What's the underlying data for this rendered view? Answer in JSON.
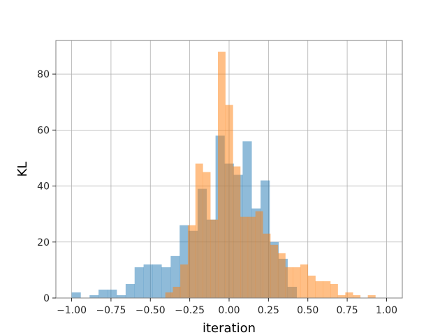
{
  "chart_data": {
    "type": "bar",
    "subtype": "overlaid-histogram",
    "title": "",
    "xlabel": "iteration",
    "ylabel": "KL",
    "xlim": [
      -1.1,
      1.1
    ],
    "ylim": [
      0,
      92
    ],
    "xticks": [
      -1.0,
      -0.75,
      -0.5,
      -0.25,
      0.0,
      0.25,
      0.5,
      0.75,
      1.0
    ],
    "xtick_labels": [
      "−1.00",
      "−0.75",
      "−0.50",
      "−0.25",
      "0.00",
      "0.25",
      "0.50",
      "0.75",
      "1.00"
    ],
    "yticks": [
      0,
      20,
      40,
      60,
      80
    ],
    "ytick_labels": [
      "0",
      "20",
      "40",
      "60",
      "80"
    ],
    "grid": true,
    "legend": "none",
    "series": [
      {
        "color": "#1f77b4",
        "alpha": 0.5,
        "bins": [
          {
            "x0": -1.0,
            "x1": -0.943,
            "count": 2
          },
          {
            "x0": -0.943,
            "x1": -0.886,
            "count": 0
          },
          {
            "x0": -0.886,
            "x1": -0.829,
            "count": 1
          },
          {
            "x0": -0.829,
            "x1": -0.771,
            "count": 3
          },
          {
            "x0": -0.771,
            "x1": -0.714,
            "count": 3
          },
          {
            "x0": -0.714,
            "x1": -0.657,
            "count": 1
          },
          {
            "x0": -0.657,
            "x1": -0.6,
            "count": 5
          },
          {
            "x0": -0.6,
            "x1": -0.543,
            "count": 11
          },
          {
            "x0": -0.543,
            "x1": -0.486,
            "count": 12
          },
          {
            "x0": -0.486,
            "x1": -0.429,
            "count": 12
          },
          {
            "x0": -0.429,
            "x1": -0.371,
            "count": 11
          },
          {
            "x0": -0.371,
            "x1": -0.314,
            "count": 15
          },
          {
            "x0": -0.314,
            "x1": -0.257,
            "count": 26
          },
          {
            "x0": -0.257,
            "x1": -0.2,
            "count": 24
          },
          {
            "x0": -0.2,
            "x1": -0.143,
            "count": 39
          },
          {
            "x0": -0.143,
            "x1": -0.086,
            "count": 28
          },
          {
            "x0": -0.086,
            "x1": -0.029,
            "count": 58
          },
          {
            "x0": -0.029,
            "x1": 0.029,
            "count": 48
          },
          {
            "x0": 0.029,
            "x1": 0.086,
            "count": 44
          },
          {
            "x0": 0.086,
            "x1": 0.143,
            "count": 56
          },
          {
            "x0": 0.143,
            "x1": 0.2,
            "count": 32
          },
          {
            "x0": 0.2,
            "x1": 0.257,
            "count": 42
          },
          {
            "x0": 0.257,
            "x1": 0.314,
            "count": 20
          },
          {
            "x0": 0.314,
            "x1": 0.371,
            "count": 14
          },
          {
            "x0": 0.371,
            "x1": 0.429,
            "count": 4
          }
        ]
      },
      {
        "color": "#ff7f0e",
        "alpha": 0.5,
        "bins": [
          {
            "x0": -0.405,
            "x1": -0.357,
            "count": 2
          },
          {
            "x0": -0.357,
            "x1": -0.31,
            "count": 4
          },
          {
            "x0": -0.31,
            "x1": -0.262,
            "count": 12
          },
          {
            "x0": -0.262,
            "x1": -0.214,
            "count": 26
          },
          {
            "x0": -0.214,
            "x1": -0.167,
            "count": 48
          },
          {
            "x0": -0.167,
            "x1": -0.119,
            "count": 45
          },
          {
            "x0": -0.119,
            "x1": -0.071,
            "count": 28
          },
          {
            "x0": -0.071,
            "x1": -0.024,
            "count": 88
          },
          {
            "x0": -0.024,
            "x1": 0.024,
            "count": 69
          },
          {
            "x0": 0.024,
            "x1": 0.071,
            "count": 47
          },
          {
            "x0": 0.071,
            "x1": 0.119,
            "count": 29
          },
          {
            "x0": 0.119,
            "x1": 0.167,
            "count": 29
          },
          {
            "x0": 0.167,
            "x1": 0.214,
            "count": 31
          },
          {
            "x0": 0.214,
            "x1": 0.262,
            "count": 23
          },
          {
            "x0": 0.262,
            "x1": 0.31,
            "count": 19
          },
          {
            "x0": 0.31,
            "x1": 0.357,
            "count": 16
          },
          {
            "x0": 0.357,
            "x1": 0.405,
            "count": 11
          },
          {
            "x0": 0.405,
            "x1": 0.452,
            "count": 11
          },
          {
            "x0": 0.452,
            "x1": 0.5,
            "count": 12
          },
          {
            "x0": 0.5,
            "x1": 0.548,
            "count": 8
          },
          {
            "x0": 0.548,
            "x1": 0.595,
            "count": 6
          },
          {
            "x0": 0.595,
            "x1": 0.643,
            "count": 6
          },
          {
            "x0": 0.643,
            "x1": 0.69,
            "count": 5
          },
          {
            "x0": 0.69,
            "x1": 0.738,
            "count": 1
          },
          {
            "x0": 0.738,
            "x1": 0.786,
            "count": 2
          },
          {
            "x0": 0.786,
            "x1": 0.833,
            "count": 1
          },
          {
            "x0": 0.833,
            "x1": 0.881,
            "count": 0
          },
          {
            "x0": 0.881,
            "x1": 0.929,
            "count": 1
          }
        ]
      }
    ]
  }
}
